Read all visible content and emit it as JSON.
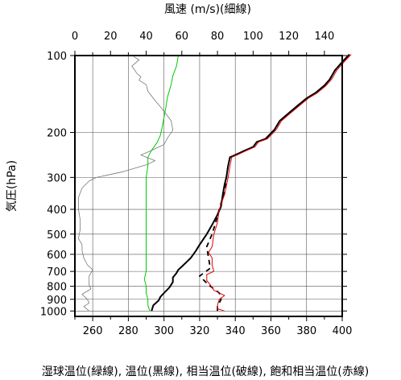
{
  "chart_data": {
    "type": "line",
    "title": "",
    "xlabel_top": "風速 (m/s)(細線)",
    "xlabel_bottom": "湿球温位(緑線), 温位(黒線), 相当温位(破線), 飽和相当温位(赤線)",
    "ylabel": "気圧(hPa)",
    "y_scale": "log",
    "y_inverted": true,
    "ylim": [
      1050,
      100
    ],
    "yticks": [
      100,
      200,
      300,
      400,
      500,
      600,
      700,
      800,
      900,
      1000
    ],
    "xlim_bottom": [
      250,
      400
    ],
    "xticks_bottom": [
      260,
      280,
      300,
      320,
      340,
      360,
      380,
      400
    ],
    "xlim_top": [
      0,
      150
    ],
    "xticks_top": [
      0,
      20,
      40,
      60,
      80,
      100,
      120,
      140
    ],
    "grid": true,
    "series": [
      {
        "color": "#000000",
        "style": "solid",
        "axis": "bottom",
        "points": [
          [
            293,
            1000
          ],
          [
            294,
            950
          ],
          [
            297,
            910
          ],
          [
            298,
            880
          ],
          [
            300,
            850
          ],
          [
            303,
            810
          ],
          [
            305,
            770
          ],
          [
            305,
            740
          ],
          [
            307,
            710
          ],
          [
            308,
            690
          ],
          [
            310,
            670
          ],
          [
            313,
            640
          ],
          [
            315,
            620
          ],
          [
            318,
            580
          ],
          [
            320,
            550
          ],
          [
            324,
            500
          ],
          [
            327,
            460
          ],
          [
            330,
            420
          ],
          [
            332,
            390
          ],
          [
            333,
            350
          ],
          [
            334,
            320
          ],
          [
            335,
            300
          ],
          [
            336,
            270
          ],
          [
            337,
            250
          ],
          [
            340,
            245
          ],
          [
            345,
            236
          ],
          [
            350,
            228
          ],
          [
            352,
            218
          ],
          [
            357,
            212
          ],
          [
            362,
            195
          ],
          [
            365,
            180
          ],
          [
            370,
            168
          ],
          [
            375,
            157
          ],
          [
            380,
            147
          ],
          [
            385,
            140
          ],
          [
            390,
            131
          ],
          [
            393,
            124
          ],
          [
            396,
            114
          ],
          [
            400,
            106
          ],
          [
            404,
            99
          ]
        ]
      },
      {
        "color": "#000000",
        "style": "dashed",
        "axis": "bottom",
        "points": [
          [
            330,
            1000
          ],
          [
            330,
            960
          ],
          [
            332,
            900
          ],
          [
            331,
            850
          ],
          [
            325,
            790
          ],
          [
            320,
            730
          ],
          [
            326,
            680
          ],
          [
            325,
            620
          ],
          [
            324,
            560
          ],
          [
            327,
            500
          ],
          [
            329,
            450
          ],
          [
            331,
            400
          ],
          [
            334,
            340
          ],
          [
            335,
            300
          ],
          [
            336,
            270
          ],
          [
            337,
            250
          ],
          [
            340,
            245
          ],
          [
            345,
            236
          ],
          [
            350,
            228
          ],
          [
            352,
            218
          ],
          [
            357,
            212
          ],
          [
            362,
            195
          ],
          [
            365,
            180
          ],
          [
            370,
            168
          ],
          [
            375,
            157
          ],
          [
            380,
            147
          ],
          [
            385,
            140
          ],
          [
            390,
            131
          ],
          [
            393,
            124
          ],
          [
            396,
            114
          ],
          [
            400,
            106
          ],
          [
            404,
            99
          ]
        ]
      },
      {
        "color": "#e00000",
        "style": "solid",
        "axis": "bottom",
        "points": [
          [
            334,
            1000
          ],
          [
            330,
            980
          ],
          [
            330,
            950
          ],
          [
            331,
            900
          ],
          [
            334,
            870
          ],
          [
            328,
            830
          ],
          [
            326,
            790
          ],
          [
            324,
            760
          ],
          [
            324,
            720
          ],
          [
            328,
            700
          ],
          [
            327,
            660
          ],
          [
            327,
            620
          ],
          [
            325,
            590
          ],
          [
            327,
            560
          ],
          [
            328,
            500
          ],
          [
            330,
            450
          ],
          [
            331,
            400
          ],
          [
            334,
            350
          ],
          [
            336,
            300
          ],
          [
            337,
            270
          ],
          [
            338,
            250
          ],
          [
            341,
            245
          ],
          [
            346,
            236
          ],
          [
            351,
            228
          ],
          [
            353,
            218
          ],
          [
            358,
            212
          ],
          [
            363,
            195
          ],
          [
            366,
            180
          ],
          [
            371,
            168
          ],
          [
            376,
            157
          ],
          [
            381,
            147
          ],
          [
            386,
            140
          ],
          [
            391,
            131
          ],
          [
            394,
            124
          ],
          [
            397,
            114
          ],
          [
            401,
            106
          ],
          [
            405,
            99
          ]
        ]
      },
      {
        "color": "#00cc00",
        "style": "solid",
        "axis": "bottom",
        "points": [
          [
            292,
            1000
          ],
          [
            291,
            950
          ],
          [
            291,
            900
          ],
          [
            290,
            850
          ],
          [
            290,
            800
          ],
          [
            289,
            750
          ],
          [
            290,
            700
          ],
          [
            290,
            650
          ],
          [
            290,
            600
          ],
          [
            290,
            550
          ],
          [
            290,
            500
          ],
          [
            290,
            450
          ],
          [
            290,
            400
          ],
          [
            290,
            350
          ],
          [
            290,
            300
          ],
          [
            291,
            270
          ],
          [
            291,
            250
          ],
          [
            293,
            235
          ],
          [
            296,
            220
          ],
          [
            298,
            205
          ],
          [
            299,
            190
          ],
          [
            300,
            175
          ],
          [
            301,
            160
          ],
          [
            302,
            145
          ],
          [
            304,
            130
          ],
          [
            305,
            120
          ],
          [
            307,
            110
          ],
          [
            308,
            100
          ]
        ]
      },
      {
        "color": "#777777",
        "style": "thin",
        "axis": "top",
        "points": [
          [
            8,
            1000
          ],
          [
            5,
            960
          ],
          [
            8,
            930
          ],
          [
            7,
            900
          ],
          [
            4,
            860
          ],
          [
            9,
            820
          ],
          [
            8,
            790
          ],
          [
            8,
            760
          ],
          [
            8,
            730
          ],
          [
            10,
            690
          ],
          [
            7,
            660
          ],
          [
            5,
            620
          ],
          [
            4,
            580
          ],
          [
            4,
            550
          ],
          [
            2,
            520
          ],
          [
            3,
            480
          ],
          [
            3,
            440
          ],
          [
            2,
            400
          ],
          [
            2,
            360
          ],
          [
            4,
            330
          ],
          [
            8,
            310
          ],
          [
            12,
            300
          ],
          [
            27,
            285
          ],
          [
            40,
            268
          ],
          [
            45,
            258
          ],
          [
            37,
            245
          ],
          [
            42,
            237
          ],
          [
            50,
            223
          ],
          [
            52,
            210
          ],
          [
            55,
            196
          ],
          [
            54,
            180
          ],
          [
            50,
            165
          ],
          [
            45,
            150
          ],
          [
            41,
            138
          ],
          [
            40,
            130
          ],
          [
            36,
            125
          ],
          [
            37,
            121
          ],
          [
            35,
            118
          ],
          [
            32,
            110
          ],
          [
            36,
            104
          ],
          [
            33,
            101
          ]
        ]
      }
    ]
  }
}
